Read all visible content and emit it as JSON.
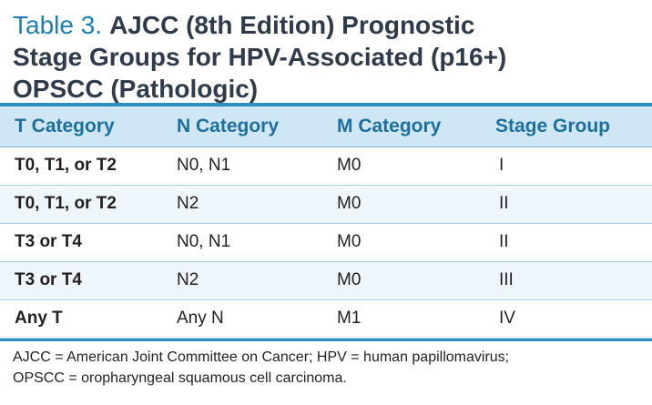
{
  "table": {
    "label": "Table 3.",
    "title_lines": [
      "AJCC (8th Edition) Prognostic",
      "Stage Groups for HPV-Associated (p16+)",
      "OPSCC (Pathologic)"
    ],
    "headers": [
      "T Category",
      "N Category",
      "M Category",
      "Stage Group"
    ],
    "rows": [
      [
        "T0, T1, or T2",
        "N0, N1",
        "M0",
        "I"
      ],
      [
        "T0, T1, or T2",
        "N2",
        "M0",
        "II"
      ],
      [
        "T3 or T4",
        "N0, N1",
        "M0",
        "II"
      ],
      [
        "T3 or T4",
        "N2",
        "M0",
        "III"
      ],
      [
        "Any T",
        "Any N",
        "M1",
        "IV"
      ]
    ],
    "footnote_lines": [
      "AJCC = American Joint Committee on Cancer; HPV = human papillomavirus;",
      "OPSCC = oropharyngeal squamous cell carcinoma."
    ]
  }
}
